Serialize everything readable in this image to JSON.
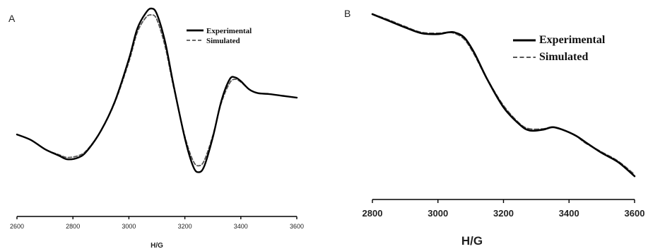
{
  "chart_data": [
    {
      "panel_label": "A",
      "type": "line",
      "xlabel": "H/G",
      "xlim": [
        2600,
        3600
      ],
      "xticks": [
        "2600",
        "2800",
        "3000",
        "3200",
        "3400",
        "3600"
      ],
      "ylim": [
        -1,
        1
      ],
      "yaxis_shown": false,
      "legend": {
        "position": "top-right",
        "entries": [
          "Experimental",
          "Simulated"
        ]
      },
      "series": [
        {
          "name": "Experimental",
          "style": "solid",
          "color": "#000000",
          "x": [
            2600,
            2650,
            2700,
            2750,
            2780,
            2820,
            2850,
            2900,
            2950,
            3000,
            3030,
            3060,
            3080,
            3100,
            3130,
            3160,
            3200,
            3230,
            3250,
            3270,
            3300,
            3330,
            3360,
            3380,
            3400,
            3430,
            3460,
            3500,
            3550,
            3600
          ],
          "y": [
            -0.37,
            -0.43,
            -0.53,
            -0.6,
            -0.64,
            -0.62,
            -0.55,
            -0.33,
            -0.01,
            0.45,
            0.78,
            0.95,
            1.0,
            0.94,
            0.63,
            0.16,
            -0.41,
            -0.72,
            -0.78,
            -0.71,
            -0.4,
            -0.01,
            0.23,
            0.25,
            0.21,
            0.12,
            0.08,
            0.07,
            0.05,
            0.03
          ]
        },
        {
          "name": "Simulated",
          "style": "dashed",
          "color": "#555555",
          "x": [
            2600,
            2650,
            2700,
            2750,
            2780,
            2820,
            2850,
            2900,
            2950,
            3000,
            3030,
            3060,
            3080,
            3100,
            3130,
            3160,
            3200,
            3230,
            3250,
            3270,
            3300,
            3330,
            3360,
            3380,
            3400,
            3430,
            3460,
            3500,
            3550,
            3600
          ],
          "y": [
            -0.37,
            -0.43,
            -0.53,
            -0.59,
            -0.62,
            -0.6,
            -0.54,
            -0.33,
            -0.02,
            0.42,
            0.74,
            0.9,
            0.93,
            0.88,
            0.58,
            0.14,
            -0.39,
            -0.66,
            -0.71,
            -0.65,
            -0.38,
            -0.03,
            0.19,
            0.23,
            0.2,
            0.12,
            0.08,
            0.07,
            0.05,
            0.03
          ]
        }
      ]
    },
    {
      "panel_label": "B",
      "type": "line",
      "xlabel": "H/G",
      "xlim": [
        2800,
        3600
      ],
      "xticks": [
        "2800",
        "3000",
        "3200",
        "3400",
        "3600"
      ],
      "ylim": [
        -1,
        1
      ],
      "yaxis_shown": false,
      "legend": {
        "position": "top-right",
        "entries": [
          "Experimental",
          "Simulated"
        ]
      },
      "series": [
        {
          "name": "Experimental",
          "style": "solid",
          "color": "#000000",
          "x": [
            2800,
            2850,
            2900,
            2950,
            3000,
            3030,
            3050,
            3080,
            3110,
            3150,
            3200,
            3250,
            3280,
            3320,
            3350,
            3380,
            3420,
            3450,
            3500,
            3550,
            3600
          ],
          "y": [
            1.0,
            0.92,
            0.84,
            0.77,
            0.76,
            0.78,
            0.78,
            0.72,
            0.54,
            0.22,
            -0.12,
            -0.33,
            -0.4,
            -0.39,
            -0.36,
            -0.39,
            -0.46,
            -0.54,
            -0.67,
            -0.78,
            -0.95
          ]
        },
        {
          "name": "Simulated",
          "style": "dashed",
          "color": "#555555",
          "x": [
            2800,
            2850,
            2900,
            2950,
            3000,
            3030,
            3050,
            3080,
            3110,
            3150,
            3200,
            3250,
            3280,
            3320,
            3350,
            3380,
            3420,
            3450,
            3500,
            3550,
            3600
          ],
          "y": [
            1.0,
            0.93,
            0.85,
            0.78,
            0.77,
            0.78,
            0.77,
            0.7,
            0.52,
            0.22,
            -0.1,
            -0.32,
            -0.38,
            -0.38,
            -0.36,
            -0.39,
            -0.46,
            -0.55,
            -0.66,
            -0.77,
            -0.93
          ]
        }
      ]
    }
  ]
}
